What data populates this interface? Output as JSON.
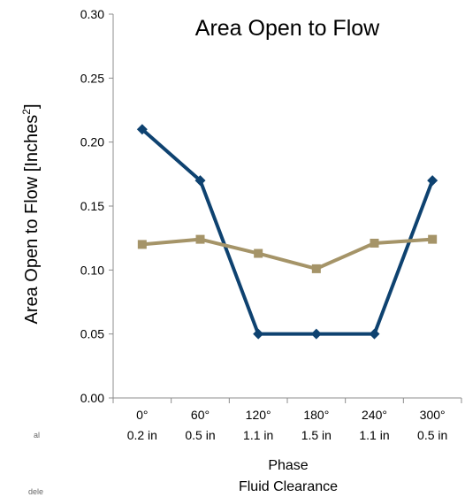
{
  "chart_data": {
    "type": "line",
    "title": "Area Open to Flow",
    "ylabel": "Area Open to Flow [Inches",
    "ylabel_superscript": "2",
    "ylabel_suffix": "]",
    "xlabel_line1": "Phase",
    "xlabel_line2": "Fluid Clearance",
    "categories": [
      {
        "phase": "0°",
        "clearance": "0.2 in"
      },
      {
        "phase": "60°",
        "clearance": "0.5 in"
      },
      {
        "phase": "120°",
        "clearance": "1.1 in"
      },
      {
        "phase": "180°",
        "clearance": "1.5 in"
      },
      {
        "phase": "240°",
        "clearance": "1.1 in"
      },
      {
        "phase": "300°",
        "clearance": "0.5 in"
      }
    ],
    "ylim": [
      0,
      0.3
    ],
    "yticks": [
      "0.00",
      "0.05",
      "0.10",
      "0.15",
      "0.20",
      "0.25",
      "0.30"
    ],
    "grid": false,
    "series": [
      {
        "color": "#0e4270",
        "marker": "diamond",
        "values": [
          0.21,
          0.17,
          0.05,
          0.05,
          0.05,
          0.17
        ]
      },
      {
        "color": "#a59468",
        "marker": "square",
        "values": [
          0.12,
          0.124,
          0.113,
          0.101,
          0.121,
          0.124
        ]
      }
    ]
  },
  "edge_text": {
    "line1": "al",
    "line2": "dele"
  }
}
